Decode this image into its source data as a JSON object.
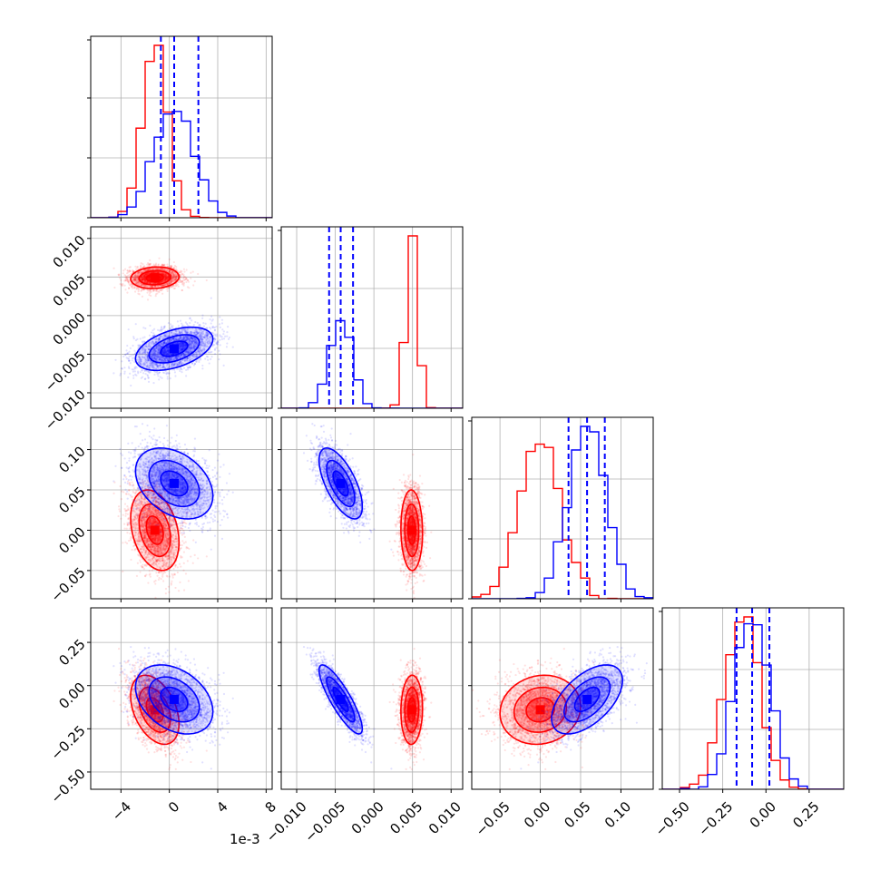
{
  "figure": {
    "offset_text": "1e-3"
  },
  "colors": {
    "red": "#ff0000",
    "blue": "#0000ff",
    "grid": "#b0b0b0"
  },
  "chart_data": {
    "type": "corner",
    "grid": true,
    "parameters": [
      {
        "range": [
          -6.5,
          8.5
        ],
        "ticks": [
          -4,
          0,
          4,
          8
        ],
        "tick_labels": [
          "−4",
          "0",
          "4",
          "8"
        ]
      },
      {
        "range": [
          -0.012,
          0.0115
        ],
        "ticks": [
          -0.01,
          -0.005,
          0.0,
          0.005,
          0.01
        ],
        "tick_labels": [
          "−0.010",
          "−0.005",
          "0.000",
          "0.005",
          "0.010"
        ]
      },
      {
        "range": [
          -0.085,
          0.14
        ],
        "ticks": [
          -0.05,
          0.0,
          0.05,
          0.1
        ],
        "tick_labels": [
          "−0.05",
          "0.00",
          "0.05",
          "0.10"
        ]
      },
      {
        "range": [
          -0.6,
          0.45
        ],
        "ticks": [
          -0.5,
          -0.25,
          0.0,
          0.25
        ],
        "tick_labels": [
          "−0.50",
          "−0.25",
          "0.00",
          "0.25"
        ]
      }
    ],
    "series": [
      {
        "color": "#ff0000",
        "mean": [
          -1.2,
          0.0049,
          0.0,
          -0.14
        ],
        "std": [
          1.0,
          0.0007,
          0.025,
          0.1
        ],
        "corr": [
          [
            1.0,
            0.1,
            -0.3,
            -0.4
          ],
          [
            0.1,
            1.0,
            -0.05,
            0.05
          ],
          [
            -0.3,
            -0.05,
            1.0,
            0.1
          ],
          [
            -0.4,
            0.05,
            0.1,
            1.0
          ]
        ],
        "quantiles": [
          null,
          null,
          null,
          null
        ]
      },
      {
        "color": "#0000ff",
        "mean": [
          0.4,
          -0.0043,
          0.058,
          -0.08
        ],
        "std": [
          1.6,
          0.0014,
          0.022,
          0.1
        ],
        "corr": [
          [
            1.0,
            0.45,
            -0.35,
            -0.35
          ],
          [
            0.45,
            1.0,
            -0.65,
            -0.85
          ],
          [
            -0.35,
            -0.65,
            1.0,
            0.55
          ],
          [
            -0.35,
            -0.85,
            0.55,
            1.0
          ]
        ],
        "quantiles": [
          [
            -0.7,
            0.4,
            2.4
          ],
          [
            -0.0058,
            -0.0043,
            -0.0027
          ],
          [
            0.035,
            0.058,
            0.08
          ],
          [
            -0.17,
            -0.08,
            0.02
          ]
        ]
      }
    ]
  }
}
